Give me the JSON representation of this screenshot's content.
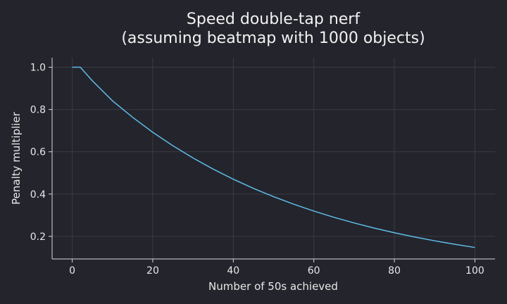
{
  "chart_data": {
    "type": "line",
    "title_line1": "Speed double-tap nerf",
    "title_line2": "(assuming beatmap with 1000 objects)",
    "xlabel": "Number of 50s achieved",
    "ylabel": "Penalty multiplier",
    "xlim": [
      -5,
      105
    ],
    "ylim": [
      0.093,
      1.045
    ],
    "x_ticks": [
      0,
      20,
      40,
      60,
      80,
      100
    ],
    "y_ticks": [
      0.2,
      0.4,
      0.6,
      0.8,
      1.0
    ],
    "x_tick_labels": [
      "0",
      "20",
      "40",
      "60",
      "80",
      "100"
    ],
    "y_tick_labels": [
      "0.2",
      "0.4",
      "0.6",
      "0.8",
      "1.0"
    ],
    "grid": true,
    "colors": {
      "background": "#24242c",
      "line": "#5ebde8",
      "grid": "#3a3a44",
      "axis": "#d8d8d8",
      "text": "#e8e8e8"
    },
    "series": [
      {
        "x": [
          0,
          1,
          2,
          5,
          10,
          15,
          20,
          25,
          30,
          35,
          40,
          45,
          50,
          55,
          60,
          65,
          70,
          75,
          80,
          85,
          90,
          95,
          100
        ],
        "y": [
          1.0,
          1.0,
          1.0,
          0.9358,
          0.8409,
          0.7631,
          0.6922,
          0.6285,
          0.5707,
          0.5181,
          0.4703,
          0.427,
          0.3877,
          0.352,
          0.3196,
          0.2901,
          0.2634,
          0.2391,
          0.2171,
          0.1971,
          0.1789,
          0.1625,
          0.1473
        ]
      }
    ]
  }
}
